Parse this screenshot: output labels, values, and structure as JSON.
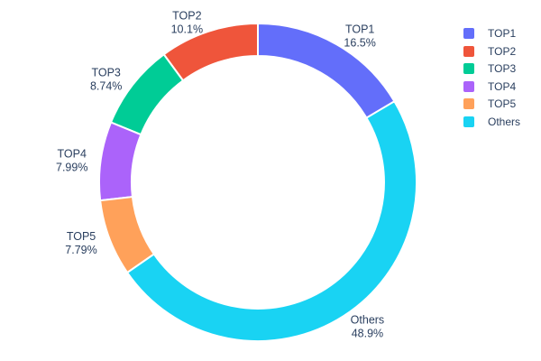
{
  "chart_data": {
    "type": "pie",
    "subtype": "donut",
    "title": "",
    "labels": [
      "TOP1",
      "TOP2",
      "TOP3",
      "TOP4",
      "TOP5",
      "Others"
    ],
    "values": [
      16.5,
      10.1,
      8.74,
      7.99,
      7.79,
      48.9
    ],
    "percent_labels": [
      "16.5%",
      "10.1%",
      "8.74%",
      "7.99%",
      "7.79%",
      "48.9%"
    ],
    "colors": [
      "#636EFA",
      "#EF553B",
      "#00CC96",
      "#AB63FA",
      "#FFA15A",
      "#19D3F3"
    ],
    "hole_ratio": 0.8,
    "rotation": "first slice starts at 12 o'clock extending clockwise; remaining slices stack counterclockwise",
    "label_position": "outside",
    "legend": {
      "position": "top-right",
      "entries": [
        "TOP1",
        "TOP2",
        "TOP3",
        "TOP4",
        "TOP5",
        "Others"
      ]
    },
    "text_color": "#2a3f5f",
    "separator_color": "#ffffff",
    "background_color": "#ffffff"
  }
}
